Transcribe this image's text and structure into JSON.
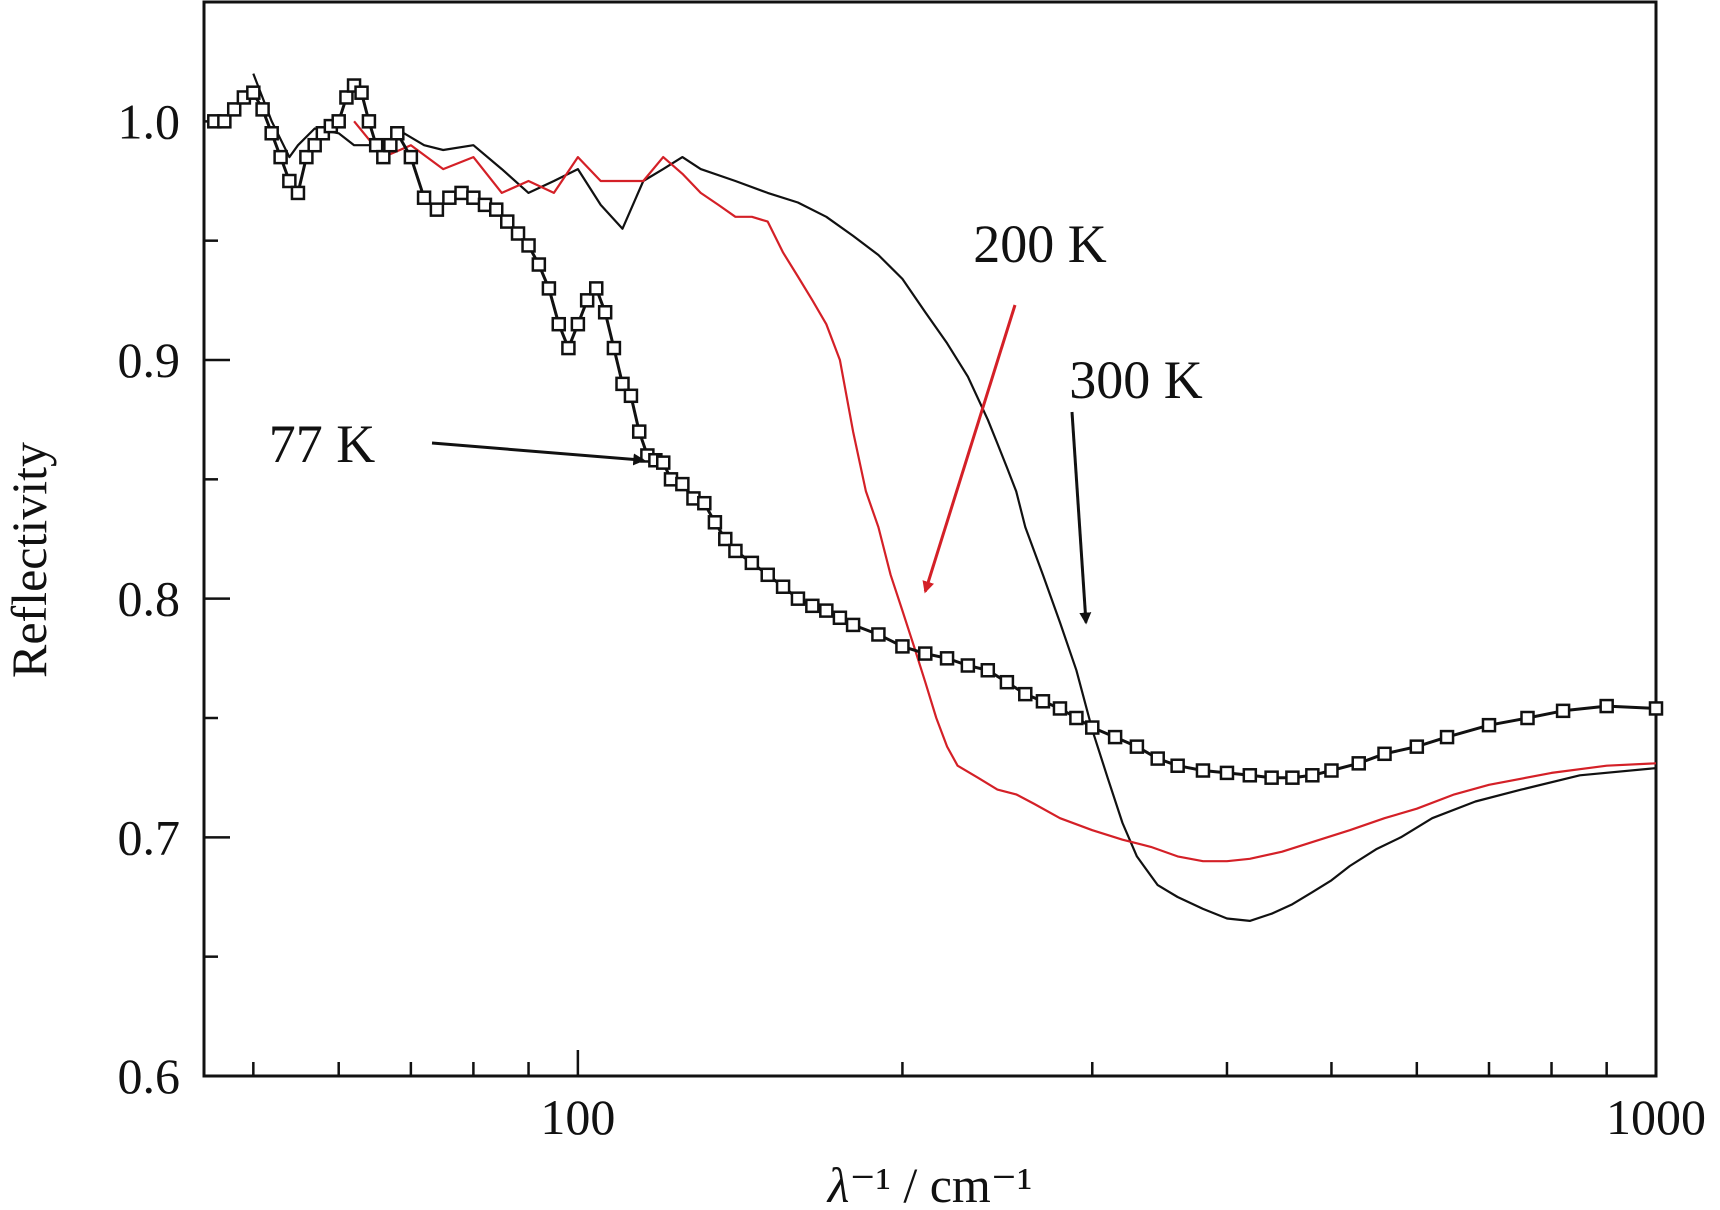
{
  "chart_data": {
    "type": "line",
    "title": "",
    "xlabel": "λ⁻¹ / cm⁻¹",
    "ylabel": "Reflectivity",
    "xscale": "log",
    "xlim": [
      45,
      1000
    ],
    "ylim": [
      0.6,
      1.05
    ],
    "x_tick_labels": [
      {
        "value": 100,
        "label": "100"
      },
      {
        "value": 1000,
        "label": "1000"
      }
    ],
    "y_tick_labels": [
      {
        "value": 0.6,
        "label": "0.6"
      },
      {
        "value": 0.7,
        "label": "0.7"
      },
      {
        "value": 0.8,
        "label": "0.8"
      },
      {
        "value": 0.9,
        "label": "0.9"
      },
      {
        "value": 1.0,
        "label": "1.0"
      }
    ],
    "y_minor_ticks": [
      0.65,
      0.75,
      0.85,
      0.95
    ],
    "grid": false,
    "series": [
      {
        "name": "300 K",
        "color": "#111111",
        "marker": "none",
        "points": [
          [
            50,
            1.02
          ],
          [
            52,
            1.0
          ],
          [
            54,
            0.985
          ],
          [
            55,
            0.99
          ],
          [
            57,
            0.997
          ],
          [
            60,
            0.995
          ],
          [
            62,
            0.99
          ],
          [
            66,
            0.99
          ],
          [
            69,
            0.995
          ],
          [
            72,
            0.99
          ],
          [
            75,
            0.988
          ],
          [
            80,
            0.99
          ],
          [
            85,
            0.98
          ],
          [
            90,
            0.97
          ],
          [
            95,
            0.975
          ],
          [
            100,
            0.98
          ],
          [
            105,
            0.965
          ],
          [
            110,
            0.955
          ],
          [
            115,
            0.975
          ],
          [
            120,
            0.98
          ],
          [
            125,
            0.985
          ],
          [
            130,
            0.98
          ],
          [
            140,
            0.975
          ],
          [
            150,
            0.97
          ],
          [
            160,
            0.966
          ],
          [
            170,
            0.96
          ],
          [
            180,
            0.952
          ],
          [
            190,
            0.944
          ],
          [
            200,
            0.934
          ],
          [
            210,
            0.92
          ],
          [
            220,
            0.907
          ],
          [
            230,
            0.893
          ],
          [
            240,
            0.875
          ],
          [
            245,
            0.865
          ],
          [
            250,
            0.855
          ],
          [
            255,
            0.845
          ],
          [
            260,
            0.83
          ],
          [
            270,
            0.81
          ],
          [
            280,
            0.79
          ],
          [
            290,
            0.77
          ],
          [
            300,
            0.745
          ],
          [
            310,
            0.725
          ],
          [
            320,
            0.706
          ],
          [
            330,
            0.692
          ],
          [
            345,
            0.68
          ],
          [
            360,
            0.675
          ],
          [
            380,
            0.67
          ],
          [
            400,
            0.666
          ],
          [
            420,
            0.665
          ],
          [
            440,
            0.668
          ],
          [
            460,
            0.672
          ],
          [
            480,
            0.677
          ],
          [
            500,
            0.682
          ],
          [
            520,
            0.688
          ],
          [
            550,
            0.695
          ],
          [
            580,
            0.7
          ],
          [
            620,
            0.708
          ],
          [
            680,
            0.715
          ],
          [
            750,
            0.72
          ],
          [
            850,
            0.726
          ],
          [
            1000,
            0.729
          ]
        ]
      },
      {
        "name": "200 K",
        "color": "#d42027",
        "marker": "none",
        "points": [
          [
            62,
            1.0
          ],
          [
            66,
            0.985
          ],
          [
            70,
            0.99
          ],
          [
            75,
            0.98
          ],
          [
            80,
            0.985
          ],
          [
            85,
            0.97
          ],
          [
            90,
            0.975
          ],
          [
            95,
            0.97
          ],
          [
            100,
            0.985
          ],
          [
            105,
            0.975
          ],
          [
            110,
            0.975
          ],
          [
            115,
            0.975
          ],
          [
            120,
            0.985
          ],
          [
            125,
            0.978
          ],
          [
            130,
            0.97
          ],
          [
            135,
            0.965
          ],
          [
            140,
            0.96
          ],
          [
            145,
            0.96
          ],
          [
            150,
            0.958
          ],
          [
            155,
            0.945
          ],
          [
            160,
            0.935
          ],
          [
            165,
            0.925
          ],
          [
            170,
            0.915
          ],
          [
            175,
            0.9
          ],
          [
            180,
            0.87
          ],
          [
            185,
            0.845
          ],
          [
            190,
            0.83
          ],
          [
            195,
            0.81
          ],
          [
            200,
            0.795
          ],
          [
            205,
            0.78
          ],
          [
            210,
            0.765
          ],
          [
            215,
            0.75
          ],
          [
            220,
            0.738
          ],
          [
            225,
            0.73
          ],
          [
            235,
            0.725
          ],
          [
            245,
            0.72
          ],
          [
            255,
            0.718
          ],
          [
            265,
            0.714
          ],
          [
            280,
            0.708
          ],
          [
            300,
            0.703
          ],
          [
            320,
            0.699
          ],
          [
            340,
            0.696
          ],
          [
            360,
            0.692
          ],
          [
            380,
            0.69
          ],
          [
            400,
            0.69
          ],
          [
            420,
            0.691
          ],
          [
            450,
            0.694
          ],
          [
            480,
            0.698
          ],
          [
            520,
            0.703
          ],
          [
            560,
            0.708
          ],
          [
            600,
            0.712
          ],
          [
            650,
            0.718
          ],
          [
            700,
            0.722
          ],
          [
            800,
            0.727
          ],
          [
            900,
            0.73
          ],
          [
            1000,
            0.731
          ]
        ]
      },
      {
        "name": "77 K",
        "color": "#111111",
        "marker": "open-square",
        "points": [
          [
            46,
            1.0
          ],
          [
            47,
            1.0
          ],
          [
            48,
            1.005
          ],
          [
            49,
            1.01
          ],
          [
            50,
            1.012
          ],
          [
            51,
            1.005
          ],
          [
            52,
            0.995
          ],
          [
            53,
            0.985
          ],
          [
            54,
            0.975
          ],
          [
            55,
            0.97
          ],
          [
            56,
            0.985
          ],
          [
            57,
            0.99
          ],
          [
            58,
            0.995
          ],
          [
            59,
            0.998
          ],
          [
            60,
            1.0
          ],
          [
            61,
            1.01
          ],
          [
            62,
            1.015
          ],
          [
            63,
            1.012
          ],
          [
            64,
            1.0
          ],
          [
            65,
            0.99
          ],
          [
            66,
            0.985
          ],
          [
            67,
            0.99
          ],
          [
            68,
            0.995
          ],
          [
            70,
            0.985
          ],
          [
            72,
            0.968
          ],
          [
            74,
            0.963
          ],
          [
            76,
            0.968
          ],
          [
            78,
            0.97
          ],
          [
            80,
            0.968
          ],
          [
            82,
            0.965
          ],
          [
            84,
            0.963
          ],
          [
            86,
            0.958
          ],
          [
            88,
            0.953
          ],
          [
            90,
            0.948
          ],
          [
            92,
            0.94
          ],
          [
            94,
            0.93
          ],
          [
            96,
            0.915
          ],
          [
            98,
            0.905
          ],
          [
            100,
            0.915
          ],
          [
            102,
            0.925
          ],
          [
            104,
            0.93
          ],
          [
            106,
            0.92
          ],
          [
            108,
            0.905
          ],
          [
            110,
            0.89
          ],
          [
            112,
            0.885
          ],
          [
            114,
            0.87
          ],
          [
            116,
            0.86
          ],
          [
            118,
            0.858
          ],
          [
            120,
            0.857
          ],
          [
            122,
            0.85
          ],
          [
            125,
            0.848
          ],
          [
            128,
            0.842
          ],
          [
            131,
            0.84
          ],
          [
            134,
            0.832
          ],
          [
            137,
            0.825
          ],
          [
            140,
            0.82
          ],
          [
            145,
            0.815
          ],
          [
            150,
            0.81
          ],
          [
            155,
            0.805
          ],
          [
            160,
            0.8
          ],
          [
            165,
            0.797
          ],
          [
            170,
            0.795
          ],
          [
            175,
            0.792
          ],
          [
            180,
            0.789
          ],
          [
            190,
            0.785
          ],
          [
            200,
            0.78
          ],
          [
            210,
            0.777
          ],
          [
            220,
            0.775
          ],
          [
            230,
            0.772
          ],
          [
            240,
            0.77
          ],
          [
            250,
            0.765
          ],
          [
            260,
            0.76
          ],
          [
            270,
            0.757
          ],
          [
            280,
            0.754
          ],
          [
            290,
            0.75
          ],
          [
            300,
            0.746
          ],
          [
            315,
            0.742
          ],
          [
            330,
            0.738
          ],
          [
            345,
            0.733
          ],
          [
            360,
            0.73
          ],
          [
            380,
            0.728
          ],
          [
            400,
            0.727
          ],
          [
            420,
            0.726
          ],
          [
            440,
            0.725
          ],
          [
            460,
            0.725
          ],
          [
            480,
            0.726
          ],
          [
            500,
            0.728
          ],
          [
            530,
            0.731
          ],
          [
            560,
            0.735
          ],
          [
            600,
            0.738
          ],
          [
            640,
            0.742
          ],
          [
            700,
            0.747
          ],
          [
            760,
            0.75
          ],
          [
            820,
            0.753
          ],
          [
            900,
            0.755
          ],
          [
            1000,
            0.754
          ]
        ]
      }
    ],
    "annotations": [
      {
        "text": "77 K",
        "series": "77 K",
        "arrow_color": "#111111",
        "arrow_to": [
          115,
          0.858
        ]
      },
      {
        "text": "200 K",
        "series": "200 K",
        "arrow_color": "#d42027",
        "arrow_to": [
          210,
          0.803
        ]
      },
      {
        "text": "300 K",
        "series": "300 K",
        "arrow_color": "#111111",
        "arrow_to": [
          296,
          0.79
        ]
      }
    ]
  }
}
